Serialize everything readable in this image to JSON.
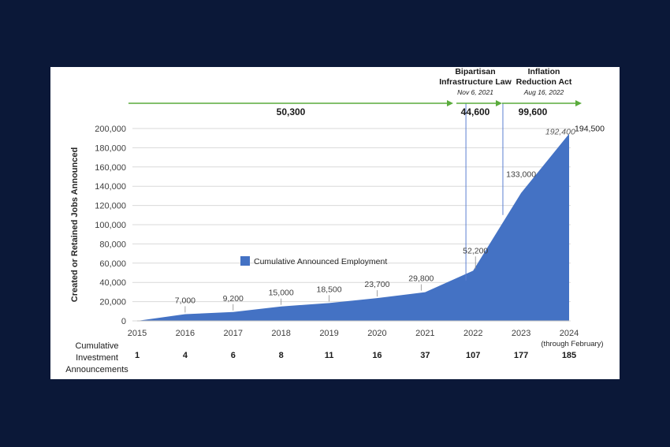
{
  "chart_data": {
    "type": "area",
    "ylabel": "Created or Retained Jobs Announced",
    "ylim": [
      0,
      200000
    ],
    "yticks": [
      "0",
      "20,000",
      "40,000",
      "60,000",
      "80,000",
      "100,000",
      "120,000",
      "140,000",
      "160,000",
      "180,000",
      "200,000"
    ],
    "legend": {
      "label": "Cumulative Announced Employment",
      "placement": "center-left",
      "color": "#4472c4"
    },
    "series": [
      {
        "name": "Cumulative Announced Employment",
        "color": "#4472c4",
        "x": [
          2015,
          2016,
          2017,
          2018,
          2019,
          2020,
          2021,
          2022,
          2023,
          2024
        ],
        "values": [
          0,
          7000,
          9200,
          15000,
          18500,
          23700,
          29800,
          52200,
          133000,
          194500
        ],
        "labels": [
          "",
          "7,000",
          "9,200",
          "15,000",
          "18,500",
          "23,700",
          "29,800",
          "52,200",
          "133,000",
          "194,500"
        ]
      }
    ],
    "x_tick_labels": [
      "2015",
      "2016",
      "2017",
      "2018",
      "2019",
      "2020",
      "2021",
      "2022",
      "2023",
      "2024"
    ],
    "x_tick_sublabel": "(through February)",
    "extra_point": {
      "x": 2023.85,
      "value": 192400,
      "label": "192,400"
    },
    "events": [
      {
        "title_lines": [
          "Bipartisan",
          "Infrastructure Law"
        ],
        "date": "Nov 6, 2021",
        "x": 2021.85
      },
      {
        "title_lines": [
          "Inflation",
          "Reduction Act"
        ],
        "date": "Aug 16, 2022",
        "x": 2022.62
      }
    ],
    "periods": [
      {
        "label": "50,300",
        "from": 2015,
        "to": 2021.85
      },
      {
        "label": "44,600",
        "from": 2021.85,
        "to": 2022.62
      },
      {
        "label": "99,600",
        "from": 2022.62,
        "to": 2024.5
      }
    ],
    "period_arrow_color": "#5aac3c",
    "announcements": {
      "label_lines": [
        "Cumulative",
        "Investment",
        "Announcements"
      ],
      "values": [
        "1",
        "4",
        "6",
        "8",
        "11",
        "16",
        "37",
        "107",
        "177",
        "185"
      ]
    },
    "grid": true
  }
}
